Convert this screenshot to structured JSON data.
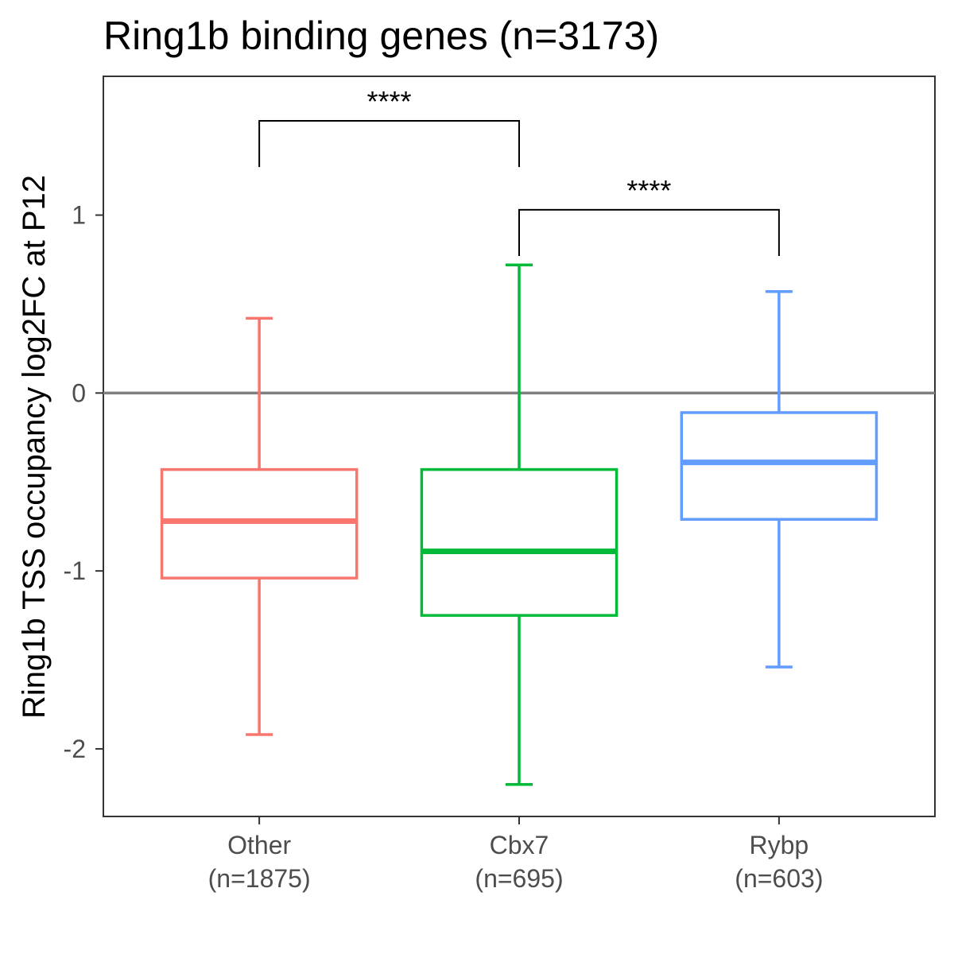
{
  "chart_data": {
    "type": "boxplot",
    "title": "Ring1b binding genes (n=3173)",
    "xlabel": "",
    "ylabel": "Ring1b TSS occupancy log2FC at P12",
    "ylim": [
      -2.38,
      1.78
    ],
    "yticks": [
      -2,
      -1,
      0,
      1
    ],
    "reference_line_y": 0,
    "reference_line_color": "#7f7f7f",
    "grid": false,
    "legend": "none",
    "categories": [
      {
        "label": "Other",
        "n_label": "(n=1875)"
      },
      {
        "label": "Cbx7",
        "n_label": "(n=695)"
      },
      {
        "label": "Rybp",
        "n_label": "(n=603)"
      }
    ],
    "series": [
      {
        "color": "#F8766D",
        "whisker_low": -1.92,
        "q1": -1.04,
        "median": -0.72,
        "q3": -0.43,
        "whisker_high": 0.42
      },
      {
        "color": "#00BA38",
        "whisker_low": -2.2,
        "q1": -1.25,
        "median": -0.89,
        "q3": -0.43,
        "whisker_high": 0.72
      },
      {
        "color": "#619CFF",
        "whisker_low": -1.54,
        "q1": -0.71,
        "median": -0.39,
        "q3": -0.11,
        "whisker_high": 0.57
      }
    ],
    "annotations": [
      {
        "from": 0,
        "to": 1,
        "label": "****",
        "y_bar": 1.53,
        "y_tip": 1.27
      },
      {
        "from": 1,
        "to": 2,
        "label": "****",
        "y_bar": 1.03,
        "y_tip": 0.77
      }
    ]
  }
}
